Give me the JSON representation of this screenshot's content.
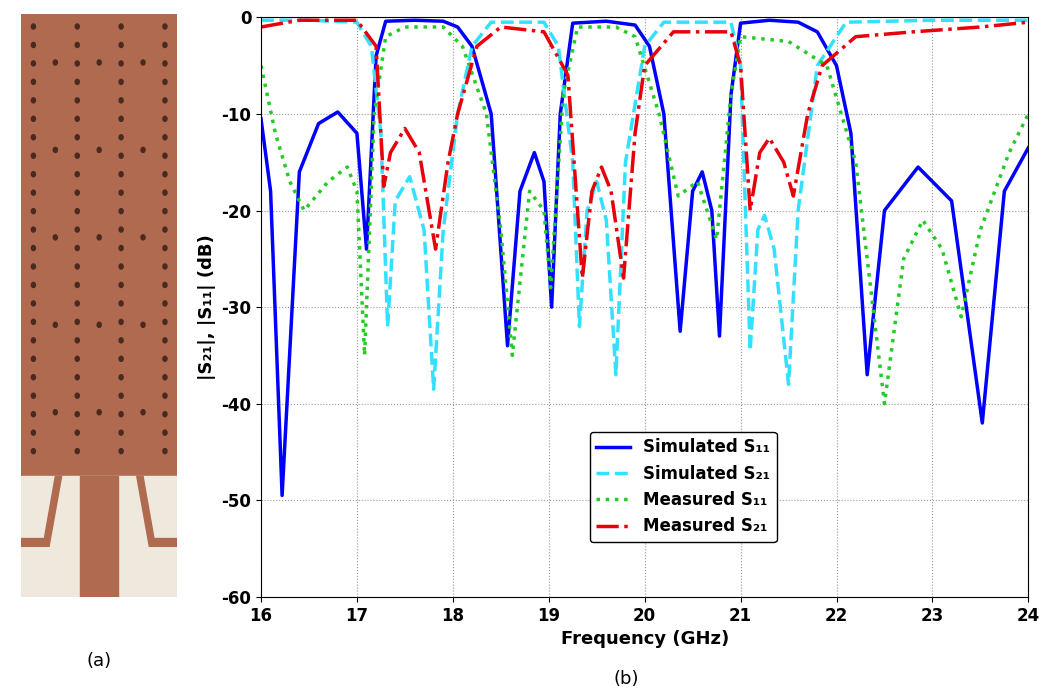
{
  "photo": {
    "caption": "(a)"
  },
  "chart_data": {
    "type": "line",
    "caption": "(b)",
    "x_label": "Frequency (GHz)",
    "y_label": "|S₂₁|, |S₁₁| (dB)",
    "xlim": [
      16,
      24
    ],
    "ylim": [
      -60,
      0
    ],
    "xticks": [
      16,
      17,
      18,
      19,
      20,
      21,
      22,
      23,
      24
    ],
    "yticks": [
      -60,
      -50,
      -40,
      -30,
      -20,
      -10,
      0
    ],
    "grid": true,
    "legend": "lower center",
    "series": [
      {
        "name": "Simulated S₁₁",
        "color": "#0000ff",
        "line_style": "solid",
        "x": [
          16.0,
          16.1,
          16.22,
          16.4,
          16.6,
          16.8,
          17.0,
          17.1,
          17.2,
          17.3,
          17.6,
          17.9,
          18.05,
          18.2,
          18.4,
          18.57,
          18.7,
          18.85,
          18.95,
          19.03,
          19.12,
          19.25,
          19.6,
          19.9,
          20.05,
          20.2,
          20.37,
          20.5,
          20.6,
          20.7,
          20.78,
          20.9,
          21.0,
          21.3,
          21.6,
          21.8,
          22.0,
          22.15,
          22.32,
          22.5,
          22.85,
          23.2,
          23.52,
          23.75,
          24.0
        ],
        "values": [
          -10.5,
          -18,
          -49.5,
          -16,
          -11,
          -9.8,
          -12,
          -24,
          -4,
          -0.4,
          -0.3,
          -0.4,
          -1,
          -3,
          -10,
          -34,
          -18,
          -14,
          -17,
          -30,
          -10,
          -0.6,
          -0.4,
          -0.8,
          -3,
          -10,
          -32.5,
          -18,
          -16,
          -20,
          -33,
          -8,
          -0.6,
          -0.3,
          -0.5,
          -1.5,
          -5,
          -12,
          -37,
          -20,
          -15.5,
          -19,
          -42,
          -18,
          -13.5
        ]
      },
      {
        "name": "Simulated S₂₁",
        "color": "#33e0ff",
        "line_style": "dashed",
        "x": [
          16.0,
          16.5,
          17.0,
          17.15,
          17.25,
          17.32,
          17.4,
          17.55,
          17.7,
          17.8,
          17.9,
          18.05,
          18.2,
          18.4,
          18.95,
          19.1,
          19.25,
          19.32,
          19.4,
          19.5,
          19.6,
          19.7,
          19.8,
          20.0,
          20.2,
          20.9,
          21.0,
          21.1,
          21.18,
          21.25,
          21.35,
          21.5,
          21.6,
          21.8,
          22.1,
          23.0,
          24.0
        ],
        "values": [
          -0.3,
          -0.3,
          -0.5,
          -3,
          -12,
          -32,
          -19,
          -16.5,
          -22,
          -38.5,
          -22,
          -10,
          -3,
          -0.5,
          -0.5,
          -3,
          -15,
          -32,
          -20,
          -17,
          -21,
          -37,
          -15,
          -3,
          -0.5,
          -0.5,
          -5,
          -34.5,
          -22,
          -20.5,
          -24,
          -38,
          -20,
          -5,
          -0.5,
          -0.3,
          -0.3
        ]
      },
      {
        "name": "Measured S₁₁",
        "color": "#22cc22",
        "line_style": "dotted",
        "x": [
          16.0,
          16.15,
          16.3,
          16.45,
          16.7,
          16.9,
          17.0,
          17.08,
          17.18,
          17.3,
          17.5,
          17.9,
          18.1,
          18.35,
          18.5,
          18.62,
          18.8,
          18.95,
          19.02,
          19.15,
          19.3,
          19.7,
          19.9,
          20.15,
          20.35,
          20.55,
          20.75,
          20.9,
          21.0,
          21.5,
          21.9,
          22.2,
          22.5,
          22.7,
          22.9,
          23.1,
          23.3,
          23.5,
          23.8,
          24.0
        ],
        "values": [
          -5,
          -12,
          -17,
          -20,
          -17,
          -15.5,
          -18,
          -35,
          -10,
          -2,
          -1,
          -1,
          -3,
          -10,
          -22,
          -35,
          -18,
          -20,
          -28,
          -8,
          -1,
          -1,
          -2,
          -10,
          -18.5,
          -17,
          -23,
          -8,
          -2,
          -2.5,
          -5,
          -15,
          -40,
          -25,
          -21,
          -24,
          -31,
          -22,
          -14,
          -10
        ]
      },
      {
        "name": "Measured S₂₁",
        "color": "#e8000b",
        "line_style": "dashdot",
        "x": [
          16.0,
          16.4,
          17.0,
          17.2,
          17.28,
          17.35,
          17.5,
          17.65,
          17.82,
          17.95,
          18.05,
          18.25,
          18.5,
          18.95,
          19.2,
          19.35,
          19.45,
          19.55,
          19.65,
          19.78,
          19.9,
          20.0,
          20.3,
          20.9,
          21.0,
          21.1,
          21.2,
          21.3,
          21.45,
          21.55,
          21.7,
          21.85,
          22.2,
          22.8,
          23.5,
          24.0
        ],
        "values": [
          -1,
          -0.3,
          -0.3,
          -3,
          -17.5,
          -14,
          -11.5,
          -14,
          -24,
          -15,
          -10,
          -3,
          -1,
          -1.5,
          -6,
          -27,
          -18,
          -15.5,
          -18,
          -27,
          -12,
          -5,
          -1.5,
          -1.5,
          -5,
          -20,
          -14,
          -12.5,
          -15,
          -18.5,
          -10,
          -5,
          -2,
          -1.5,
          -1,
          -0.5
        ]
      }
    ]
  }
}
